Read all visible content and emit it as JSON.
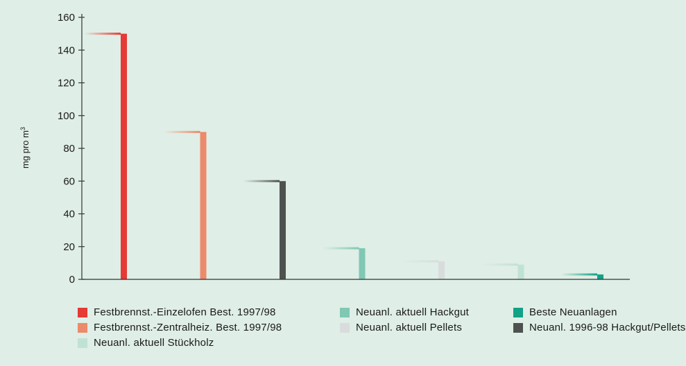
{
  "chart_data": {
    "type": "bar",
    "title": "",
    "xlabel": "",
    "ylabel_main": "mg pro m",
    "ylabel_sup": "3",
    "ylim": [
      0,
      160
    ],
    "yticks": [
      0,
      20,
      40,
      60,
      80,
      100,
      120,
      140,
      160
    ],
    "grid": false,
    "legend_position": "bottom",
    "series": [
      {
        "name": "Festbrennst.-Einzelofen Best. 1997/98",
        "value": 150,
        "color": "#e53a35"
      },
      {
        "name": "Festbrennst.-Zentralheiz. Best. 1997/98",
        "value": 90,
        "color": "#ec8a6c"
      },
      {
        "name": "Neuanl. 1996-98 Hackgut/Pellets",
        "value": 60,
        "color": "#4d5251"
      },
      {
        "name": "Neuanl. aktuell Hackgut",
        "value": 19,
        "color": "#7fc8b3"
      },
      {
        "name": "Neuanl. aktuell Pellets",
        "value": 11,
        "color": "#d9dcdc"
      },
      {
        "name": "Neuanl. aktuell Stückholz",
        "value": 9,
        "color": "#c0e2d6"
      },
      {
        "name": "Beste Neuanlagen",
        "value": 3,
        "color": "#11a287"
      }
    ],
    "legend_order": [
      0,
      3,
      6,
      1,
      4,
      2,
      5
    ]
  }
}
